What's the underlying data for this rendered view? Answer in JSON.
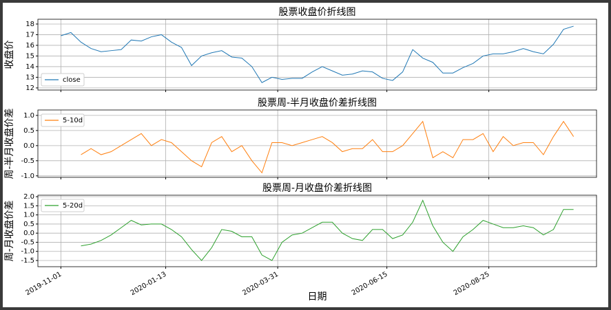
{
  "chart_data": [
    {
      "type": "line",
      "title": "股票收盘价折线图",
      "ylabel": "收盘价",
      "x": [
        "2019-11-01",
        "2019-11-08",
        "2019-11-15",
        "2019-11-22",
        "2019-11-29",
        "2019-12-06",
        "2019-12-13",
        "2019-12-20",
        "2019-12-27",
        "2020-01-03",
        "2020-01-10",
        "2020-01-17",
        "2020-01-24",
        "2020-01-31",
        "2020-02-07",
        "2020-02-14",
        "2020-02-21",
        "2020-02-28",
        "2020-03-06",
        "2020-03-13",
        "2020-03-20",
        "2020-03-27",
        "2020-04-03",
        "2020-04-10",
        "2020-04-17",
        "2020-04-24",
        "2020-05-01",
        "2020-05-08",
        "2020-05-15",
        "2020-05-22",
        "2020-05-29",
        "2020-06-05",
        "2020-06-12",
        "2020-06-19",
        "2020-06-26",
        "2020-07-03",
        "2020-07-10",
        "2020-07-17",
        "2020-07-24",
        "2020-07-31",
        "2020-08-07",
        "2020-08-14",
        "2020-08-21",
        "2020-08-28",
        "2020-09-04",
        "2020-09-11",
        "2020-09-18",
        "2020-09-25",
        "2020-10-02",
        "2020-10-09",
        "2020-10-16",
        "2020-10-23"
      ],
      "series": [
        {
          "name": "close",
          "color": "#1f77b4",
          "values": [
            16.9,
            17.2,
            16.3,
            15.7,
            15.4,
            15.5,
            15.6,
            16.5,
            16.4,
            16.8,
            17.0,
            16.3,
            15.8,
            14.1,
            15.0,
            15.3,
            15.5,
            14.9,
            14.8,
            14.0,
            12.5,
            13.0,
            12.8,
            12.9,
            12.9,
            13.5,
            14.0,
            13.6,
            13.2,
            13.3,
            13.6,
            13.5,
            12.9,
            12.7,
            13.5,
            15.6,
            14.8,
            14.4,
            13.4,
            13.4,
            13.9,
            14.3,
            15.0,
            15.2,
            15.2,
            15.4,
            15.7,
            15.4,
            15.2,
            16.1,
            17.5,
            17.8
          ]
        }
      ],
      "xlim": [
        "2019-10-16",
        "2020-11-08"
      ],
      "xticks": [
        "2019-11-01",
        "2020-01-13",
        "2020-03-31",
        "2020-06-15",
        "2020-08-25"
      ],
      "ylim": [
        11.8,
        18.45
      ],
      "yticks": [
        12,
        13,
        14,
        15,
        16,
        17,
        18
      ],
      "grid": true,
      "legend": "lower left"
    },
    {
      "type": "line",
      "title": "股票周-半月收盘价差折线图",
      "ylabel": "周-半月收盘价差",
      "x": [
        "2019-11-01",
        "2019-11-08",
        "2019-11-15",
        "2019-11-22",
        "2019-11-29",
        "2019-12-06",
        "2019-12-13",
        "2019-12-20",
        "2019-12-27",
        "2020-01-03",
        "2020-01-10",
        "2020-01-17",
        "2020-01-24",
        "2020-01-31",
        "2020-02-07",
        "2020-02-14",
        "2020-02-21",
        "2020-02-28",
        "2020-03-06",
        "2020-03-13",
        "2020-03-20",
        "2020-03-27",
        "2020-04-03",
        "2020-04-10",
        "2020-04-17",
        "2020-04-24",
        "2020-05-01",
        "2020-05-08",
        "2020-05-15",
        "2020-05-22",
        "2020-05-29",
        "2020-06-05",
        "2020-06-12",
        "2020-06-19",
        "2020-06-26",
        "2020-07-03",
        "2020-07-10",
        "2020-07-17",
        "2020-07-24",
        "2020-07-31",
        "2020-08-07",
        "2020-08-14",
        "2020-08-21",
        "2020-08-28",
        "2020-09-04",
        "2020-09-11",
        "2020-09-18",
        "2020-09-25",
        "2020-10-02",
        "2020-10-09",
        "2020-10-16",
        "2020-10-23"
      ],
      "series": [
        {
          "name": "5-10d",
          "color": "#ff7f0e",
          "values": [
            null,
            null,
            -0.3,
            -0.1,
            -0.3,
            -0.2,
            0.0,
            0.2,
            0.4,
            0.0,
            0.2,
            0.1,
            -0.2,
            -0.5,
            -0.7,
            0.1,
            0.3,
            -0.2,
            0.0,
            -0.5,
            -0.9,
            0.1,
            0.1,
            0.0,
            0.1,
            0.2,
            0.3,
            0.1,
            -0.2,
            -0.1,
            -0.1,
            0.2,
            -0.2,
            -0.2,
            0.0,
            0.4,
            0.8,
            -0.4,
            -0.2,
            -0.4,
            0.2,
            0.2,
            0.4,
            -0.2,
            0.3,
            0.0,
            0.1,
            0.1,
            -0.3,
            0.3,
            0.8,
            0.3
          ]
        }
      ],
      "xlim": [
        "2019-10-16",
        "2020-11-08"
      ],
      "xticks": [
        "2019-11-01",
        "2020-01-13",
        "2020-03-31",
        "2020-06-15",
        "2020-08-25"
      ],
      "ylim": [
        -1.05,
        1.18
      ],
      "yticks": [
        {
          "value": 1,
          "label": "1.0"
        },
        {
          "value": 0.5,
          "label": "0.5"
        },
        {
          "value": 0,
          "label": "0.0"
        },
        {
          "value": -0.5,
          "label": "-0.5"
        },
        {
          "value": -1,
          "label": "-1.0"
        }
      ],
      "grid": true,
      "legend": "upper left"
    },
    {
      "type": "line",
      "title": "股票周-月收盘价差折线图",
      "ylabel": "周-月收盘价差",
      "xlabel": "日期",
      "x": [
        "2019-11-01",
        "2019-11-08",
        "2019-11-15",
        "2019-11-22",
        "2019-11-29",
        "2019-12-06",
        "2019-12-13",
        "2019-12-20",
        "2019-12-27",
        "2020-01-03",
        "2020-01-10",
        "2020-01-17",
        "2020-01-24",
        "2020-01-31",
        "2020-02-07",
        "2020-02-14",
        "2020-02-21",
        "2020-02-28",
        "2020-03-06",
        "2020-03-13",
        "2020-03-20",
        "2020-03-27",
        "2020-04-03",
        "2020-04-10",
        "2020-04-17",
        "2020-04-24",
        "2020-05-01",
        "2020-05-08",
        "2020-05-15",
        "2020-05-22",
        "2020-05-29",
        "2020-06-05",
        "2020-06-12",
        "2020-06-19",
        "2020-06-26",
        "2020-07-03",
        "2020-07-10",
        "2020-07-17",
        "2020-07-24",
        "2020-07-31",
        "2020-08-07",
        "2020-08-14",
        "2020-08-21",
        "2020-08-28",
        "2020-09-04",
        "2020-09-11",
        "2020-09-18",
        "2020-09-25",
        "2020-10-02",
        "2020-10-09",
        "2020-10-16",
        "2020-10-23"
      ],
      "series": [
        {
          "name": "5-20d",
          "color": "#2ca02c",
          "values": [
            null,
            null,
            -0.7,
            -0.6,
            -0.4,
            -0.1,
            0.3,
            0.7,
            0.45,
            0.5,
            0.5,
            0.2,
            -0.2,
            -0.9,
            -1.5,
            -0.8,
            0.2,
            0.1,
            -0.2,
            -0.2,
            -1.2,
            -1.5,
            -0.5,
            -0.1,
            0.0,
            0.3,
            0.6,
            0.6,
            0.0,
            -0.3,
            -0.4,
            0.2,
            0.2,
            -0.3,
            -0.1,
            0.6,
            1.8,
            0.4,
            -0.5,
            -1.0,
            -0.2,
            0.2,
            0.7,
            0.5,
            0.3,
            0.3,
            0.4,
            0.3,
            -0.1,
            0.2,
            1.3,
            1.3
          ]
        }
      ],
      "xlim": [
        "2019-10-16",
        "2020-11-08"
      ],
      "xticks": [
        "2019-11-01",
        "2020-01-13",
        "2020-03-31",
        "2020-06-15",
        "2020-08-25"
      ],
      "ylim": [
        -1.84,
        2.08
      ],
      "yticks": [
        {
          "value": 2,
          "label": "2.0"
        },
        {
          "value": 1.5,
          "label": "1.5"
        },
        {
          "value": 1,
          "label": "1.0"
        },
        {
          "value": 0.5,
          "label": "0.5"
        },
        {
          "value": 0,
          "label": "0.0"
        },
        {
          "value": -0.5,
          "label": "-0.5"
        },
        {
          "value": -1,
          "label": "-1.0"
        },
        {
          "value": -1.5,
          "label": "-1.5"
        }
      ],
      "grid": true,
      "legend": "upper left"
    }
  ]
}
